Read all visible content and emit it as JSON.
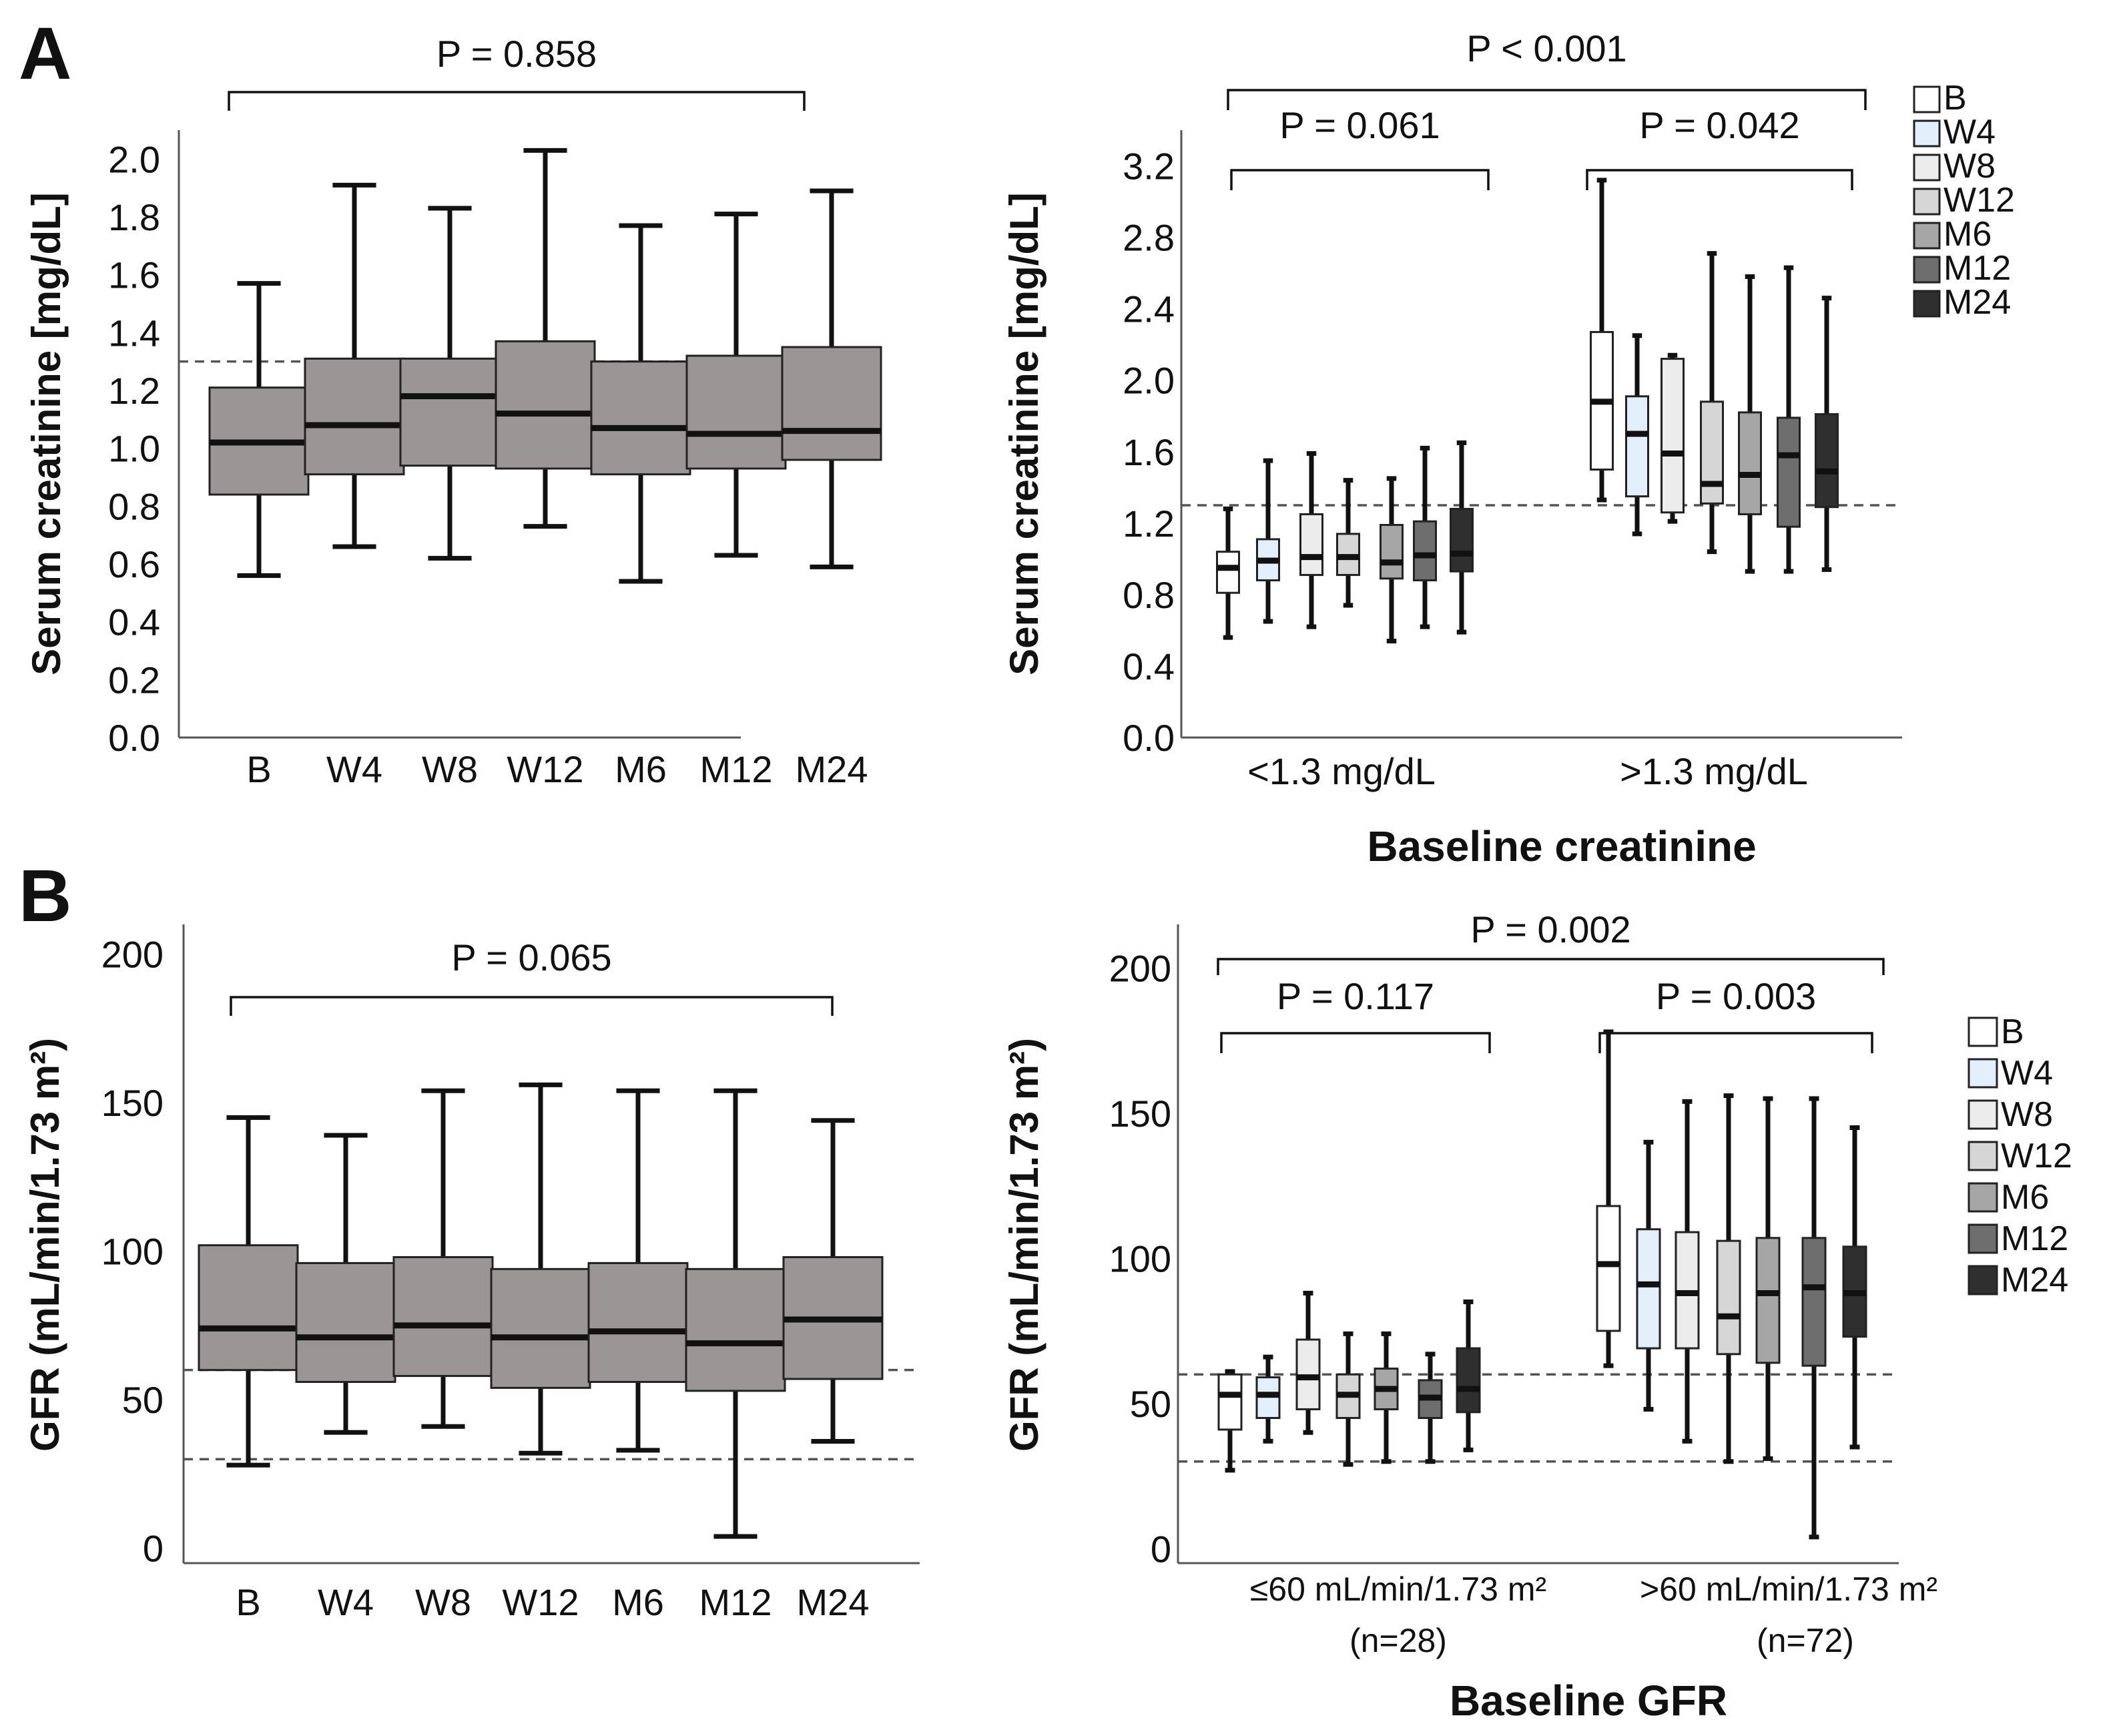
{
  "figure": {
    "panel_labels": [
      "A",
      "B"
    ]
  },
  "colors": {
    "single_box": "#9a9696",
    "B": "#ffffff",
    "W4": "#e3f0fb",
    "W8": "#ececec",
    "W12": "#d6d6d6",
    "M6": "#a6a6a6",
    "M12": "#6e6e6e",
    "M24": "#2f2f2f"
  },
  "chart_data": [
    {
      "id": "A-left",
      "type": "box",
      "ylabel": "Serum creatinine [mg/dL]",
      "xlabel": "",
      "ylim": [
        0,
        2.1
      ],
      "yticks": [
        "0.0",
        "0.2",
        "0.4",
        "0.6",
        "0.8",
        "1.0",
        "1.2",
        "1.4",
        "1.6",
        "1.8",
        "2.0"
      ],
      "categories": [
        "B",
        "W4",
        "W8",
        "W12",
        "M6",
        "M12",
        "M24"
      ],
      "reference_lines": [
        1.3
      ],
      "boxes": [
        {
          "min": 0.56,
          "q1": 0.84,
          "median": 1.02,
          "q3": 1.21,
          "max": 1.57
        },
        {
          "min": 0.66,
          "q1": 0.91,
          "median": 1.08,
          "q3": 1.31,
          "max": 1.91
        },
        {
          "min": 0.62,
          "q1": 0.94,
          "median": 1.18,
          "q3": 1.31,
          "max": 1.83
        },
        {
          "min": 0.73,
          "q1": 0.93,
          "median": 1.12,
          "q3": 1.37,
          "max": 2.03
        },
        {
          "min": 0.54,
          "q1": 0.91,
          "median": 1.07,
          "q3": 1.3,
          "max": 1.77
        },
        {
          "min": 0.63,
          "q1": 0.93,
          "median": 1.05,
          "q3": 1.32,
          "max": 1.81
        },
        {
          "min": 0.59,
          "q1": 0.96,
          "median": 1.06,
          "q3": 1.35,
          "max": 1.89
        }
      ],
      "comparisons": [
        {
          "label": "P = 0.858",
          "from": "B",
          "to": "M24"
        }
      ]
    },
    {
      "id": "A-right",
      "type": "box",
      "ylabel": "Serum creatinine [mg/dL]",
      "xlabel": "Baseline creatinine",
      "ylim": [
        0,
        3.4
      ],
      "yticks": [
        "0.0",
        "0.4",
        "0.8",
        "1.2",
        "1.6",
        "2.0",
        "2.4",
        "2.8",
        "3.2"
      ],
      "groups": [
        "<1.3 mg/dL",
        ">1.3 mg/dL"
      ],
      "legend": [
        "B",
        "W4",
        "W8",
        "W12",
        "M6",
        "M12",
        "M24"
      ],
      "legend_position": "right",
      "reference_lines": [
        1.3
      ],
      "series": [
        {
          "name": "B",
          "boxes": [
            {
              "min": 0.56,
              "q1": 0.81,
              "median": 0.95,
              "q3": 1.04,
              "max": 1.28
            },
            {
              "min": 1.33,
              "q1": 1.5,
              "median": 1.88,
              "q3": 2.27,
              "max": 3.12
            }
          ]
        },
        {
          "name": "W4",
          "boxes": [
            {
              "min": 0.65,
              "q1": 0.88,
              "median": 0.99,
              "q3": 1.11,
              "max": 1.55
            },
            {
              "min": 1.14,
              "q1": 1.35,
              "median": 1.7,
              "q3": 1.91,
              "max": 2.25
            }
          ]
        },
        {
          "name": "W8",
          "boxes": [
            {
              "min": 0.62,
              "q1": 0.91,
              "median": 1.01,
              "q3": 1.25,
              "max": 1.59
            },
            {
              "min": 1.21,
              "q1": 1.26,
              "median": 1.59,
              "q3": 2.12,
              "max": 2.14
            }
          ]
        },
        {
          "name": "W12",
          "boxes": [
            {
              "min": 0.74,
              "q1": 0.91,
              "median": 1.01,
              "q3": 1.14,
              "max": 1.44
            },
            {
              "min": 1.04,
              "q1": 1.31,
              "median": 1.42,
              "q3": 1.88,
              "max": 2.71
            }
          ]
        },
        {
          "name": "M6",
          "boxes": [
            {
              "min": 0.54,
              "q1": 0.89,
              "median": 0.98,
              "q3": 1.19,
              "max": 1.45
            },
            {
              "min": 0.93,
              "q1": 1.25,
              "median": 1.47,
              "q3": 1.82,
              "max": 2.58
            }
          ]
        },
        {
          "name": "M12",
          "boxes": [
            {
              "min": 0.62,
              "q1": 0.88,
              "median": 1.02,
              "q3": 1.21,
              "max": 1.62
            },
            {
              "min": 0.93,
              "q1": 1.18,
              "median": 1.58,
              "q3": 1.79,
              "max": 2.63
            }
          ]
        },
        {
          "name": "M24",
          "boxes": [
            {
              "min": 0.59,
              "q1": 0.93,
              "median": 1.03,
              "q3": 1.28,
              "max": 1.65
            },
            {
              "min": 0.94,
              "q1": 1.29,
              "median": 1.49,
              "q3": 1.81,
              "max": 2.46
            }
          ]
        }
      ],
      "comparisons": [
        {
          "label": "P < 0.001",
          "scope": "all"
        },
        {
          "label": "P = 0.061",
          "scope": "<1.3 mg/dL"
        },
        {
          "label": "P = 0.042",
          "scope": ">1.3 mg/dL"
        }
      ]
    },
    {
      "id": "B-left",
      "type": "box",
      "ylabel": "GFR (mL/min/1.73 m²)",
      "xlabel": "",
      "ylim": [
        -5,
        210
      ],
      "yticks": [
        "0",
        "50",
        "100",
        "150",
        "200"
      ],
      "categories": [
        "B",
        "W4",
        "W8",
        "W12",
        "M6",
        "M12",
        "M24"
      ],
      "reference_lines": [
        60,
        30
      ],
      "boxes": [
        {
          "min": 28,
          "q1": 60,
          "median": 74,
          "q3": 102,
          "max": 145
        },
        {
          "min": 39,
          "q1": 56,
          "median": 71,
          "q3": 96,
          "max": 139
        },
        {
          "min": 41,
          "q1": 58,
          "median": 75,
          "q3": 98,
          "max": 154
        },
        {
          "min": 32,
          "q1": 54,
          "median": 71,
          "q3": 94,
          "max": 156
        },
        {
          "min": 33,
          "q1": 56,
          "median": 73,
          "q3": 96,
          "max": 154
        },
        {
          "min": 4,
          "q1": 53,
          "median": 69,
          "q3": 94,
          "max": 154
        },
        {
          "min": 36,
          "q1": 57,
          "median": 77,
          "q3": 98,
          "max": 144
        }
      ],
      "comparisons": [
        {
          "label": "P = 0.065",
          "from": "B",
          "to": "M24"
        }
      ]
    },
    {
      "id": "B-right",
      "type": "box",
      "ylabel": "GFR (mL/min/1.73 m²)",
      "xlabel": "Baseline GFR",
      "ylim": [
        -5,
        215
      ],
      "yticks": [
        "0",
        "50",
        "100",
        "150",
        "200"
      ],
      "groups": [
        "≤60 mL/min/1.73 m²",
        ">60 mL/min/1.73 m²"
      ],
      "group_notes": [
        "(n=28)",
        "(n=72)"
      ],
      "legend": [
        "B",
        "W4",
        "W8",
        "W12",
        "M6",
        "M12",
        "M24"
      ],
      "legend_position": "right",
      "reference_lines": [
        60,
        30
      ],
      "series": [
        {
          "name": "B",
          "boxes": [
            {
              "min": 27,
              "q1": 41,
              "median": 53,
              "q3": 60,
              "max": 61
            },
            {
              "min": 63,
              "q1": 75,
              "median": 98,
              "q3": 118,
              "max": 178
            }
          ]
        },
        {
          "name": "W4",
          "boxes": [
            {
              "min": 37,
              "q1": 45,
              "median": 53,
              "q3": 59,
              "max": 66
            },
            {
              "min": 48,
              "q1": 69,
              "median": 91,
              "q3": 110,
              "max": 140
            }
          ]
        },
        {
          "name": "W8",
          "boxes": [
            {
              "min": 40,
              "q1": 48,
              "median": 59,
              "q3": 72,
              "max": 88
            },
            {
              "min": 37,
              "q1": 69,
              "median": 88,
              "q3": 109,
              "max": 154
            }
          ]
        },
        {
          "name": "W12",
          "boxes": [
            {
              "min": 29,
              "q1": 45,
              "median": 53,
              "q3": 60,
              "max": 74
            },
            {
              "min": 30,
              "q1": 67,
              "median": 80,
              "q3": 106,
              "max": 156
            }
          ]
        },
        {
          "name": "M6",
          "boxes": [
            {
              "min": 30,
              "q1": 48,
              "median": 55,
              "q3": 62,
              "max": 74
            },
            {
              "min": 31,
              "q1": 64,
              "median": 88,
              "q3": 107,
              "max": 155
            }
          ]
        },
        {
          "name": "M12",
          "boxes": [
            {
              "min": 30,
              "q1": 45,
              "median": 52,
              "q3": 58,
              "max": 67
            },
            {
              "min": 4,
              "q1": 63,
              "median": 90,
              "q3": 107,
              "max": 155
            }
          ]
        },
        {
          "name": "M24",
          "boxes": [
            {
              "min": 34,
              "q1": 47,
              "median": 55,
              "q3": 69,
              "max": 85
            },
            {
              "min": 35,
              "q1": 73,
              "median": 88,
              "q3": 104,
              "max": 145
            }
          ]
        }
      ],
      "comparisons": [
        {
          "label": "P = 0.002",
          "scope": "all"
        },
        {
          "label": "P = 0.117",
          "scope": "≤60 mL/min/1.73 m²"
        },
        {
          "label": "P = 0.003",
          "scope": ">60 mL/min/1.73 m²"
        }
      ]
    }
  ]
}
